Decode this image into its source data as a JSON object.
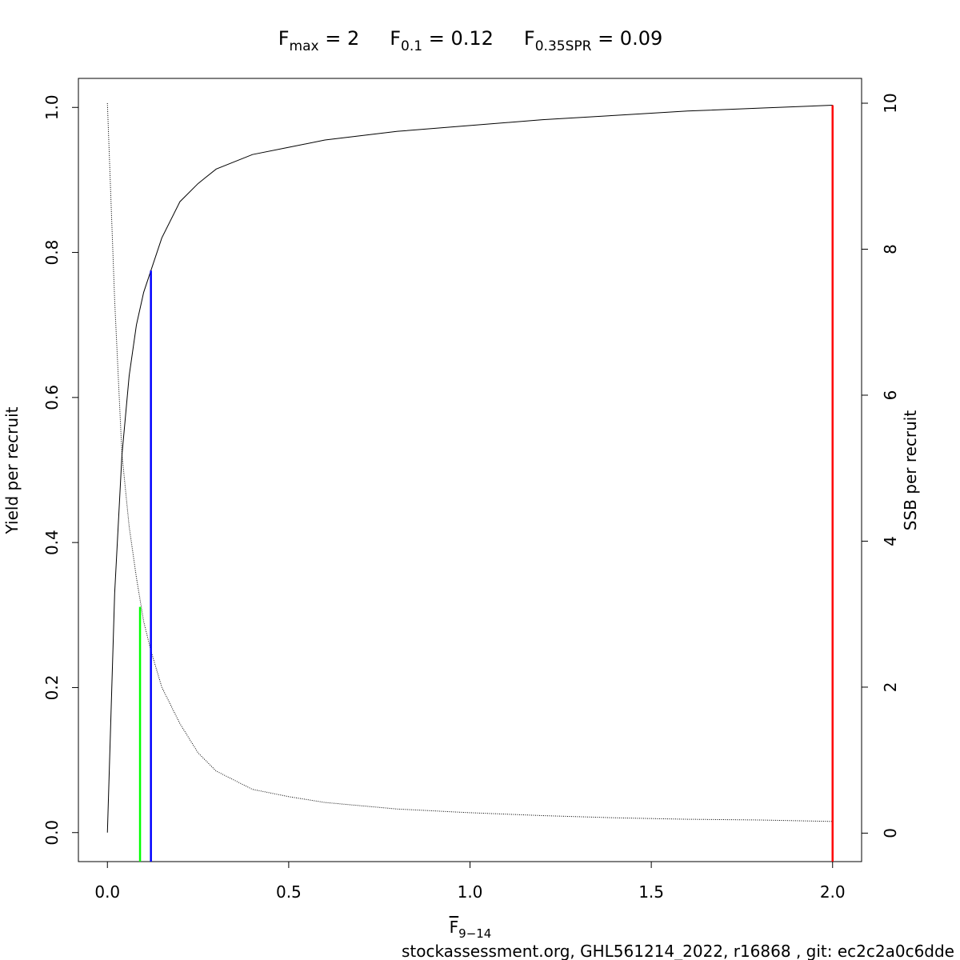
{
  "chart_data": {
    "type": "line",
    "title": [
      {
        "main": "F",
        "sub": "max",
        "rest": " = 2"
      },
      {
        "main": "F",
        "sub": "0.1",
        "rest": " = 0.12"
      },
      {
        "main": "F",
        "sub": "0.35SPR",
        "rest": " = 0.09"
      }
    ],
    "x_label": {
      "main": "F",
      "sub": "9−14"
    },
    "y_label": "Yield per recruit",
    "y2_label": "SSB per recruit",
    "footer": "stockassessment.org, GHL561214_2022, r16868 , git: ec2c2a0c6dde",
    "x": [
      0,
      0.02,
      0.04,
      0.06,
      0.08,
      0.1,
      0.12,
      0.15,
      0.2,
      0.25,
      0.3,
      0.4,
      0.5,
      0.6,
      0.8,
      1.0,
      1.2,
      1.4,
      1.6,
      1.8,
      2.0
    ],
    "series": [
      {
        "name": "Yield per recruit",
        "color": "#000000",
        "dash": "none",
        "values": [
          0,
          0.33,
          0.52,
          0.63,
          0.7,
          0.745,
          0.775,
          0.82,
          0.87,
          0.895,
          0.915,
          0.935,
          0.945,
          0.955,
          0.967,
          0.975,
          0.983,
          0.989,
          0.995,
          0.999,
          1.003
        ]
      },
      {
        "name": "SSB per recruit",
        "color": "#000000",
        "dash": "1 1.5",
        "axis": "y2",
        "values": [
          10.0,
          7.3,
          5.2,
          4.2,
          3.5,
          2.9,
          2.5,
          2.0,
          1.5,
          1.1,
          0.85,
          0.6,
          0.5,
          0.42,
          0.33,
          0.28,
          0.24,
          0.21,
          0.19,
          0.18,
          0.16
        ]
      }
    ],
    "reference_lines": [
      {
        "x": 0.09,
        "y": 3.1,
        "axis": "y2",
        "color": "#00ff00"
      },
      {
        "x": 0.12,
        "y": 0.775,
        "color": "#0000ff"
      },
      {
        "x": 2.0,
        "y": 1.003,
        "color": "#ff0000"
      }
    ],
    "xlim": [
      -0.08,
      2.08
    ],
    "xticks": [
      {
        "value": 0,
        "label": "0.0"
      },
      0.5,
      {
        "value": 1,
        "label": "1.0"
      },
      1.5,
      {
        "value": 2,
        "label": "2.0"
      }
    ],
    "ylim": [
      -0.04,
      1.04
    ],
    "yticks": [
      {
        "value": 0,
        "label": "0.0"
      },
      0.2,
      0.4,
      0.6,
      0.8,
      {
        "value": 1,
        "label": "1.0"
      }
    ],
    "y2lim": [
      -0.39,
      10.34
    ],
    "y2ticks": [
      0,
      2,
      4,
      6,
      8,
      10
    ]
  }
}
